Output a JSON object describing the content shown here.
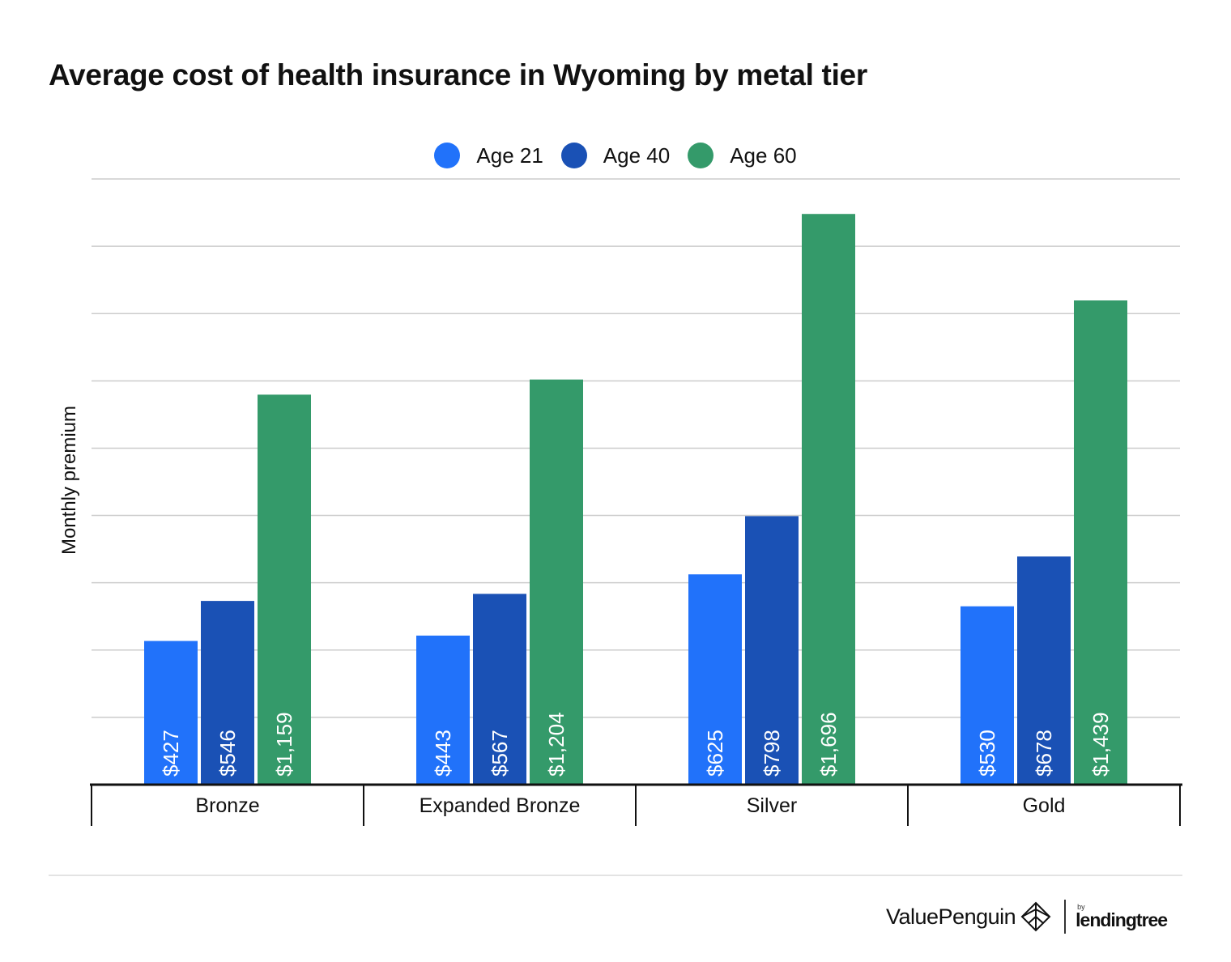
{
  "chart_data": {
    "type": "bar",
    "title": "Average cost of health insurance in Wyoming by metal tier",
    "ylabel": "Monthly premium",
    "xlabel": "",
    "categories": [
      "Bronze",
      "Expanded Bronze",
      "Silver",
      "Gold"
    ],
    "series": [
      {
        "name": "Age 21",
        "values": [
          427,
          443,
          625,
          530
        ],
        "labels": [
          "$427",
          "$443",
          "$625",
          "$530"
        ]
      },
      {
        "name": "Age 40",
        "values": [
          546,
          567,
          798,
          678
        ],
        "labels": [
          "$546",
          "$567",
          "$798",
          "$678"
        ]
      },
      {
        "name": "Age 60",
        "values": [
          1159,
          1204,
          1696,
          1439
        ],
        "labels": [
          "$1,159",
          "$1,204",
          "$1,696",
          "$1,439"
        ]
      }
    ],
    "ylim": [
      0,
      1800
    ],
    "gridlines": 9,
    "grid": true,
    "legend_position": "top-center",
    "colors": [
      "#2172fa",
      "#1a51b5",
      "#349a6a"
    ]
  },
  "brand": {
    "valuepenguin": "ValuePenguin",
    "by": "by",
    "lendingtree": "lendingtree"
  }
}
